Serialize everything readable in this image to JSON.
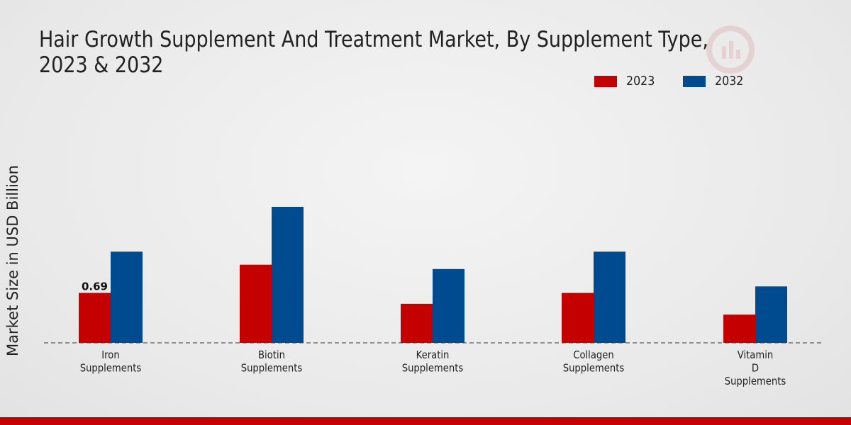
{
  "colors": {
    "series_2023": "#c40000",
    "series_2032": "#004a8f"
  },
  "chart_data": {
    "type": "bar",
    "title": "Hair Growth Supplement And Treatment Market, By Supplement Type, 2023 & 2032",
    "ylabel": "Market Size in USD Billion",
    "xlabel": "",
    "categories": [
      [
        "Iron",
        "Supplements"
      ],
      [
        "Biotin",
        "Supplements"
      ],
      [
        "Keratin",
        "Supplements"
      ],
      [
        "Collagen",
        "Supplements"
      ],
      [
        "Vitamin",
        "D",
        "Supplements"
      ]
    ],
    "series": [
      {
        "name": "2023",
        "values": [
          0.69,
          1.08,
          0.54,
          0.69,
          0.39
        ]
      },
      {
        "name": "2032",
        "values": [
          1.26,
          1.88,
          1.02,
          1.26,
          0.78
        ]
      }
    ],
    "data_labels": [
      {
        "series": 0,
        "index": 0,
        "text": "0.69"
      }
    ],
    "ylim": [
      0,
      2.5
    ],
    "grid": false,
    "legend": "top-right"
  }
}
